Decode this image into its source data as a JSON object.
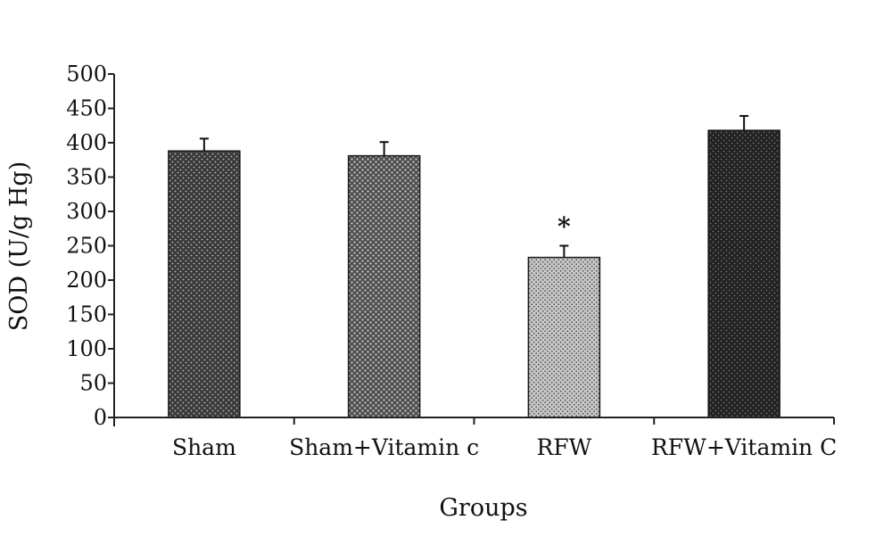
{
  "chart_data": {
    "type": "bar",
    "title": "",
    "xlabel": "Groups",
    "ylabel": "SOD (U/g Hg)",
    "ylim": [
      0,
      500
    ],
    "yticks": [
      0,
      50,
      100,
      150,
      200,
      250,
      300,
      350,
      400,
      450,
      500
    ],
    "grid": false,
    "categories": [
      "Sham",
      "Sham+Vitamin c",
      "RFW",
      "RFW+Vitamin C"
    ],
    "values": [
      388,
      381,
      233,
      418
    ],
    "errors": [
      18,
      20,
      17,
      21
    ],
    "annotations": [
      {
        "category": "RFW",
        "text": "*"
      }
    ],
    "colors": {
      "Sham": "#3a3a3a",
      "Sham+Vitamin c": "#5a5a5a",
      "RFW": "#9a9a9a",
      "RFW+Vitamin C": "#232323"
    }
  }
}
